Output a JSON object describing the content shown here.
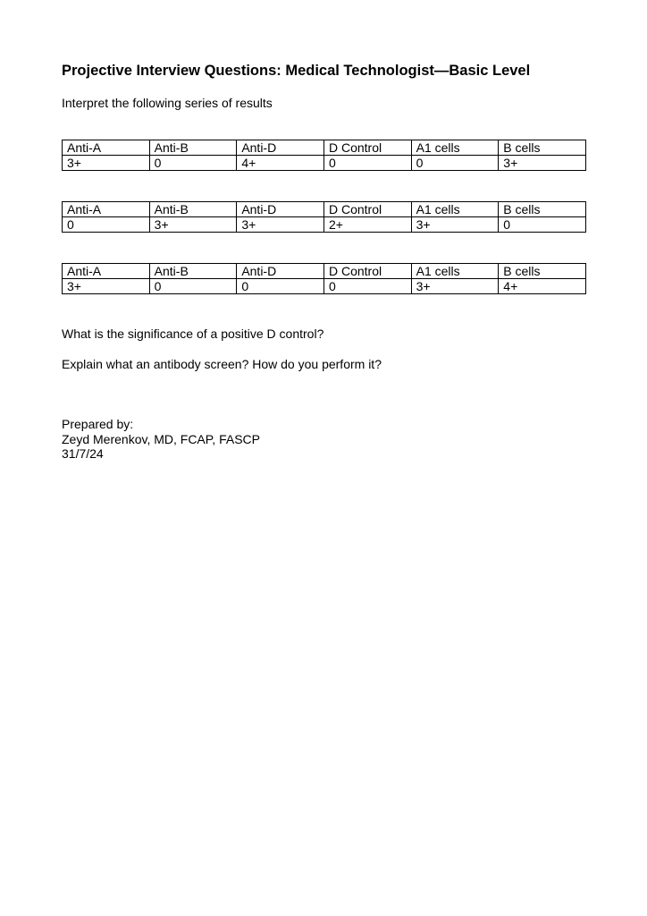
{
  "title": "Projective Interview Questions:  Medical Technologist—Basic Level",
  "intro": "Interpret the following series of results",
  "tables": [
    {
      "headers": [
        "Anti-A",
        "Anti-B",
        "Anti-D",
        "D Control",
        "A1 cells",
        "B cells"
      ],
      "values": [
        "3+",
        "0",
        "4+",
        "0",
        "0",
        "3+"
      ]
    },
    {
      "headers": [
        "Anti-A",
        "Anti-B",
        "Anti-D",
        "D Control",
        "A1 cells",
        "B cells"
      ],
      "values": [
        "0",
        "3+",
        "3+",
        "2+",
        "3+",
        "0"
      ]
    },
    {
      "headers": [
        "Anti-A",
        "Anti-B",
        "Anti-D",
        "D Control",
        "A1 cells",
        "B cells"
      ],
      "values": [
        "3+",
        "0",
        "0",
        "0",
        "3+",
        "4+"
      ]
    }
  ],
  "questions": [
    "What is the significance of a positive D control?",
    "Explain what an antibody screen?  How do you perform it?"
  ],
  "footer": {
    "prepared_label": "Prepared by:",
    "author": "Zeyd Merenkov, MD, FCAP, FASCP",
    "date": "31/7/24"
  }
}
